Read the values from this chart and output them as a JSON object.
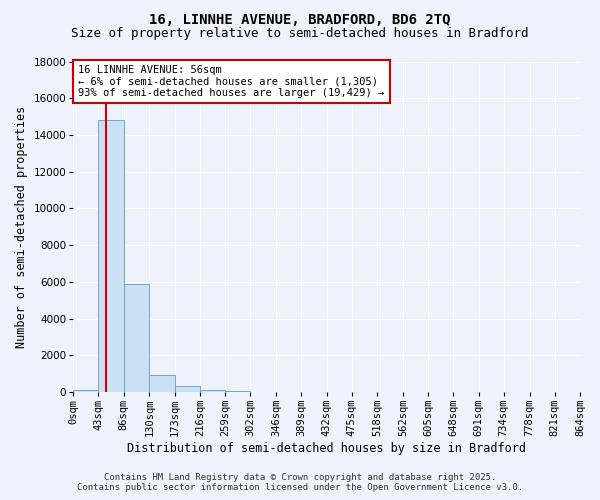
{
  "title_line1": "16, LINNHE AVENUE, BRADFORD, BD6 2TQ",
  "title_line2": "Size of property relative to semi-detached houses in Bradford",
  "xlabel": "Distribution of semi-detached houses by size in Bradford",
  "ylabel": "Number of semi-detached properties",
  "annotation_title": "16 LINNHE AVENUE: 56sqm",
  "annotation_line2": "← 6% of semi-detached houses are smaller (1,305)",
  "annotation_line3": "93% of semi-detached houses are larger (19,429) →",
  "footer_line1": "Contains HM Land Registry data © Crown copyright and database right 2025.",
  "footer_line2": "Contains public sector information licensed under the Open Government Licence v3.0.",
  "bin_edges": [
    0,
    43,
    86,
    130,
    173,
    216,
    259,
    302,
    346,
    389,
    432,
    475,
    518,
    562,
    605,
    648,
    691,
    734,
    778,
    821,
    864
  ],
  "bin_labels": [
    "0sqm",
    "43sqm",
    "86sqm",
    "130sqm",
    "173sqm",
    "216sqm",
    "259sqm",
    "302sqm",
    "346sqm",
    "389sqm",
    "432sqm",
    "475sqm",
    "518sqm",
    "562sqm",
    "605sqm",
    "648sqm",
    "691sqm",
    "734sqm",
    "778sqm",
    "821sqm",
    "864sqm"
  ],
  "bar_heights": [
    130,
    14800,
    5900,
    900,
    300,
    130,
    60,
    15,
    0,
    0,
    0,
    0,
    0,
    0,
    0,
    0,
    0,
    0,
    0,
    0
  ],
  "bar_color": "#cce0f5",
  "bar_edge_color": "#5b9bd5",
  "vline_x": 56,
  "vline_color": "#cc0000",
  "ylim": [
    0,
    18000
  ],
  "yticks": [
    0,
    2000,
    4000,
    6000,
    8000,
    10000,
    12000,
    14000,
    16000,
    18000
  ],
  "background_color": "#eef2fb",
  "grid_color": "#ffffff",
  "annotation_box_facecolor": "#ffffff",
  "annotation_box_edgecolor": "#cc0000",
  "title_fontsize": 10,
  "subtitle_fontsize": 9,
  "axis_label_fontsize": 8.5,
  "tick_fontsize": 7.5,
  "annotation_fontsize": 7.5,
  "footer_fontsize": 6.5
}
